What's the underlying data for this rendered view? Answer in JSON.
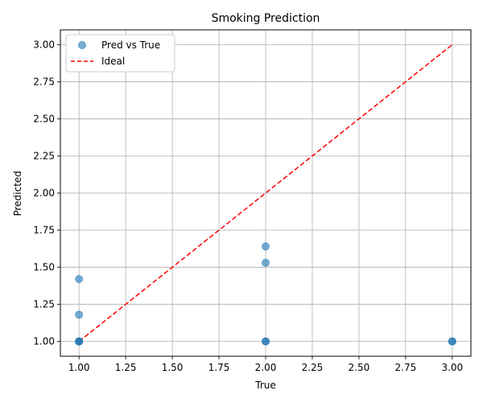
{
  "chart_data": {
    "type": "scatter",
    "title": "Smoking Prediction",
    "xlabel": "True",
    "ylabel": "Predicted",
    "xlim": [
      0.9,
      3.1
    ],
    "ylim": [
      0.9,
      3.1
    ],
    "xticks": [
      "1.00",
      "1.25",
      "1.50",
      "1.75",
      "2.00",
      "2.25",
      "2.50",
      "2.75",
      "3.00"
    ],
    "yticks": [
      "1.00",
      "1.25",
      "1.50",
      "1.75",
      "2.00",
      "2.25",
      "2.50",
      "2.75",
      "3.00"
    ],
    "grid": true,
    "legend_position": "top-left",
    "series": [
      {
        "name": "Pred vs True",
        "kind": "scatter",
        "color": "#1f77b4",
        "x": [
          1,
          1,
          1,
          1,
          1,
          2,
          2,
          2,
          2,
          3,
          3
        ],
        "y": [
          1.0,
          1.0,
          1.0,
          1.18,
          1.42,
          1.0,
          1.0,
          1.53,
          1.64,
          1.0,
          1.0
        ]
      },
      {
        "name": "Ideal",
        "kind": "line",
        "style": "dashed",
        "color": "#ff0000",
        "x": [
          1,
          3
        ],
        "y": [
          1,
          3
        ]
      }
    ]
  }
}
